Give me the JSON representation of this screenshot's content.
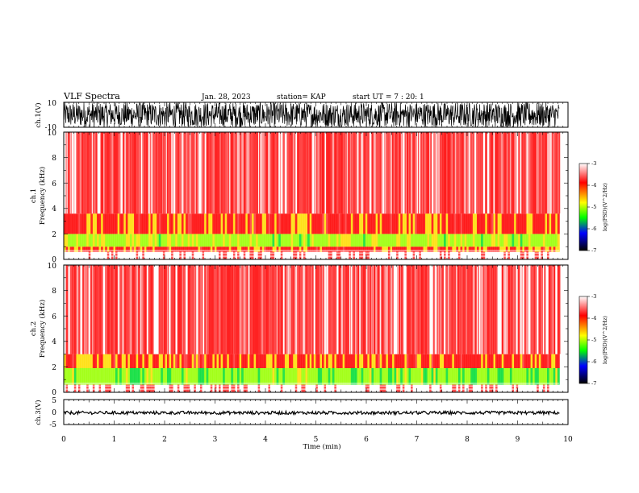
{
  "header": {
    "title": "VLF Spectra",
    "date": "Jan. 28, 2023",
    "station": "station= KAP",
    "start": "start UT =  7 : 20: 1"
  },
  "chart_data": [
    {
      "type": "line",
      "name": "ch1-waveform",
      "ylabel": "ch.1(V)",
      "ylim": [
        -10,
        10
      ],
      "yticks": [
        "10",
        "-10"
      ],
      "xlim": [
        0,
        10
      ],
      "x_data_end": 9.83,
      "amplitude_range": [
        -10,
        10
      ],
      "color": "#000000"
    },
    {
      "type": "heatmap",
      "name": "ch1-spectrogram",
      "ylabel": "ch.1\nFrequency (kHz)",
      "ylim": [
        0,
        10
      ],
      "yticks": [
        "0",
        "2",
        "4",
        "6",
        "8",
        "10"
      ],
      "xlim": [
        0,
        10
      ],
      "x_data_end": 9.83,
      "bands": [
        {
          "from_khz": 0.0,
          "to_khz": 0.6,
          "level": "-3"
        },
        {
          "from_khz": 0.6,
          "to_khz": 1.0,
          "level": "-4"
        },
        {
          "from_khz": 1.0,
          "to_khz": 2.0,
          "level": "-4.8"
        },
        {
          "from_khz": 2.0,
          "to_khz": 3.6,
          "level": "-4"
        },
        {
          "from_khz": 3.6,
          "to_khz": 10.0,
          "level": "-3.3"
        }
      ],
      "colorbar": {
        "label": "log(PSD)(V^2/Hz)",
        "ticks": [
          "-3",
          "-4",
          "-5",
          "-6",
          "-7"
        ],
        "range": [
          -7,
          -3
        ],
        "colors": [
          "#ffffff",
          "#ff0000",
          "#ffff00",
          "#00ff00",
          "#0000ff",
          "#000000"
        ]
      }
    },
    {
      "type": "heatmap",
      "name": "ch2-spectrogram",
      "ylabel": "ch.2\nFrequency (kHz)",
      "ylim": [
        0,
        10
      ],
      "yticks": [
        "0",
        "2",
        "4",
        "6",
        "8",
        "10"
      ],
      "xlim": [
        0,
        10
      ],
      "x_data_end": 9.83,
      "bands": [
        {
          "from_khz": 0.0,
          "to_khz": 0.6,
          "level": "-3"
        },
        {
          "from_khz": 0.6,
          "to_khz": 1.9,
          "level": "-5"
        },
        {
          "from_khz": 1.9,
          "to_khz": 3.0,
          "level": "-4"
        },
        {
          "from_khz": 3.0,
          "to_khz": 10.0,
          "level": "-3.3"
        }
      ],
      "colorbar": {
        "label": "log(PSD)(V^2/Hz)",
        "ticks": [
          "-3",
          "-4",
          "-5",
          "-6",
          "-7"
        ],
        "range": [
          -7,
          -3
        ],
        "colors": [
          "#ffffff",
          "#ff0000",
          "#ffff00",
          "#00ff00",
          "#0000ff",
          "#000000"
        ]
      }
    },
    {
      "type": "line",
      "name": "ch3-waveform",
      "ylabel": "ch.3(V)",
      "ylim": [
        -5,
        5
      ],
      "yticks": [
        "5",
        "0",
        "-5"
      ],
      "xlim": [
        0,
        10
      ],
      "x_data_end": 9.83,
      "level": -0.3,
      "amplitude_range": [
        -1,
        0.3
      ],
      "color": "#000000"
    }
  ],
  "xaxis": {
    "label": "Time (min)",
    "ticks": [
      "0",
      "1",
      "2",
      "3",
      "4",
      "5",
      "6",
      "7",
      "8",
      "9",
      "10"
    ],
    "range": [
      0,
      10
    ]
  }
}
